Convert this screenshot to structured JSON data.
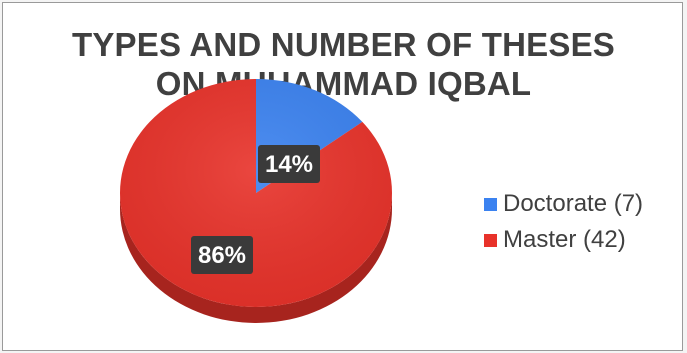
{
  "chart_data": {
    "type": "pie",
    "title_lines": [
      "TYPES AND NUMBER OF THESES",
      "ON MUHAMMAD IQBAL"
    ],
    "categories": [
      "Doctorate",
      "Master"
    ],
    "values": [
      7,
      42
    ],
    "percent_labels": [
      "14%",
      "86%"
    ],
    "legend_labels": [
      "Doctorate (7)",
      "Master (42)"
    ],
    "colors": [
      "#3b82f0",
      "#e8322a"
    ],
    "legend_position": "right"
  }
}
